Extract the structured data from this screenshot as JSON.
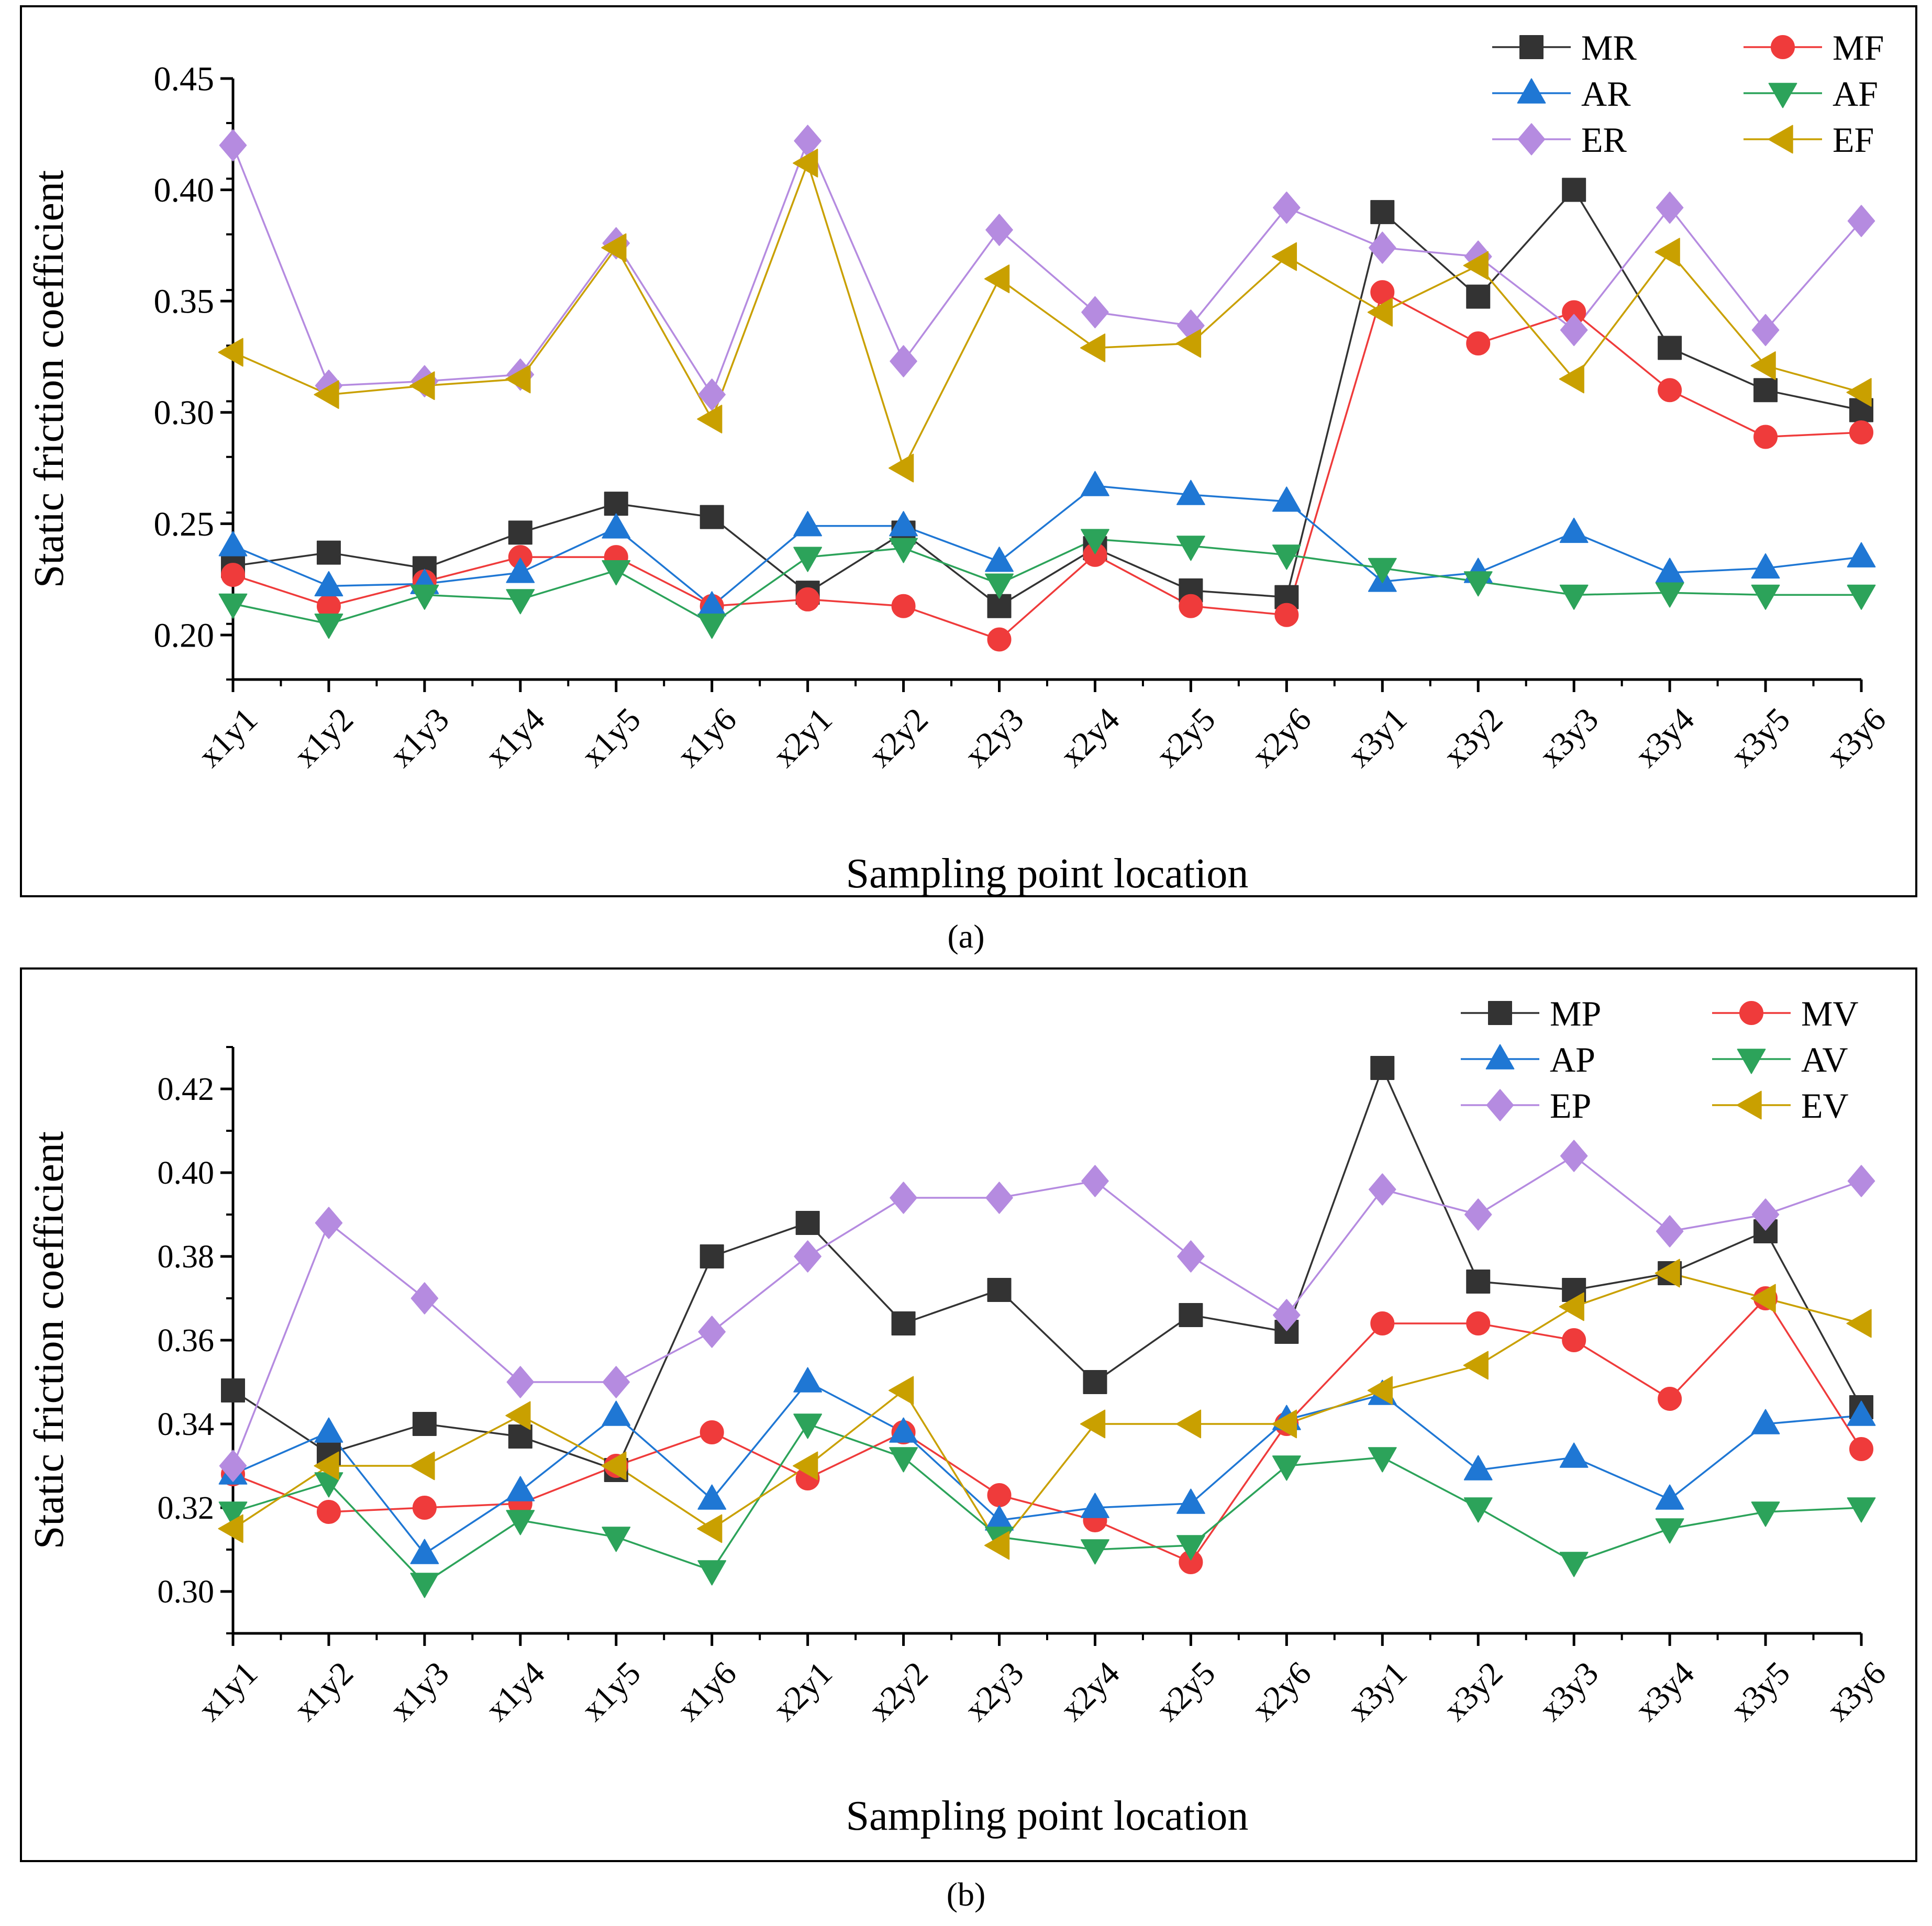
{
  "chart_data": [
    {
      "type": "line",
      "panel_label": "a",
      "caption": "(a)",
      "xlabel": "Sampling point location",
      "ylabel": "Static friction coefficient",
      "ylim": [
        0.18,
        0.45
      ],
      "yticks": [
        "0.20",
        "0.25",
        "0.30",
        "0.35",
        "0.40",
        "0.45"
      ],
      "legend_position": "top-right",
      "categories": [
        "x1y1",
        "x1y2",
        "x1y3",
        "x1y4",
        "x1y5",
        "x1y6",
        "x2y1",
        "x2y2",
        "x2y3",
        "x2y4",
        "x2y5",
        "x2y6",
        "x3y1",
        "x3y2",
        "x3y3",
        "x3y4",
        "x3y5",
        "x3y6"
      ],
      "series": [
        {
          "name": "MR",
          "color": "#333333",
          "marker": "square",
          "values": [
            0.231,
            0.237,
            0.23,
            0.246,
            0.259,
            0.253,
            0.219,
            0.246,
            0.213,
            0.239,
            0.22,
            0.217,
            0.39,
            0.352,
            0.4,
            0.329,
            0.31,
            0.301
          ]
        },
        {
          "name": "MF",
          "color": "#ef3b3b",
          "marker": "circle",
          "values": [
            0.227,
            0.213,
            0.224,
            0.235,
            0.235,
            0.213,
            0.216,
            0.213,
            0.198,
            0.236,
            0.213,
            0.209,
            0.354,
            0.331,
            0.345,
            0.31,
            0.289,
            0.291
          ]
        },
        {
          "name": "AR",
          "color": "#1f77d4",
          "marker": "triangle-up",
          "values": [
            0.24,
            0.222,
            0.223,
            0.228,
            0.248,
            0.213,
            0.249,
            0.249,
            0.233,
            0.267,
            0.263,
            0.26,
            0.224,
            0.228,
            0.246,
            0.228,
            0.23,
            0.235
          ]
        },
        {
          "name": "AF",
          "color": "#2ca35a",
          "marker": "triangle-down",
          "values": [
            0.214,
            0.205,
            0.218,
            0.216,
            0.229,
            0.205,
            0.235,
            0.239,
            0.223,
            0.243,
            0.24,
            0.236,
            0.23,
            0.224,
            0.218,
            0.219,
            0.218,
            0.218
          ]
        },
        {
          "name": "ER",
          "color": "#b58be0",
          "marker": "diamond",
          "values": [
            0.42,
            0.312,
            0.314,
            0.317,
            0.376,
            0.308,
            0.422,
            0.323,
            0.382,
            0.345,
            0.339,
            0.392,
            0.374,
            0.37,
            0.337,
            0.392,
            0.337,
            0.386
          ]
        },
        {
          "name": "EF",
          "color": "#c9a000",
          "marker": "triangle-left",
          "values": [
            0.327,
            0.308,
            0.312,
            0.315,
            0.374,
            0.297,
            0.412,
            0.275,
            0.36,
            0.329,
            0.331,
            0.37,
            0.345,
            0.366,
            0.315,
            0.372,
            0.321,
            0.309
          ]
        }
      ]
    },
    {
      "type": "line",
      "panel_label": "b",
      "caption": "(b)",
      "xlabel": "Sampling point location",
      "ylabel": "Static friction coefficient",
      "ylim": [
        0.29,
        0.43
      ],
      "yticks": [
        "0.30",
        "0.32",
        "0.34",
        "0.36",
        "0.38",
        "0.40",
        "0.42"
      ],
      "legend_position": "top-right",
      "categories": [
        "x1y1",
        "x1y2",
        "x1y3",
        "x1y4",
        "x1y5",
        "x1y6",
        "x2y1",
        "x2y2",
        "x2y3",
        "x2y4",
        "x2y5",
        "x2y6",
        "x3y1",
        "x3y2",
        "x3y3",
        "x3y4",
        "x3y5",
        "x3y6"
      ],
      "series": [
        {
          "name": "MP",
          "color": "#333333",
          "marker": "square",
          "values": [
            0.348,
            0.333,
            0.34,
            0.337,
            0.329,
            0.38,
            0.388,
            0.364,
            0.372,
            0.35,
            0.366,
            0.362,
            0.425,
            0.374,
            0.372,
            0.376,
            0.386,
            0.344
          ]
        },
        {
          "name": "MV",
          "color": "#ef3b3b",
          "marker": "circle",
          "values": [
            0.328,
            0.319,
            0.32,
            0.321,
            0.33,
            0.338,
            0.327,
            0.338,
            0.323,
            0.317,
            0.307,
            0.34,
            0.364,
            0.364,
            0.36,
            0.346,
            0.37,
            0.334
          ]
        },
        {
          "name": "AP",
          "color": "#1f77d4",
          "marker": "triangle-up",
          "values": [
            0.328,
            0.338,
            0.309,
            0.324,
            0.342,
            0.322,
            0.35,
            0.338,
            0.317,
            0.32,
            0.321,
            0.341,
            0.347,
            0.329,
            0.332,
            0.322,
            0.34,
            0.342
          ]
        },
        {
          "name": "AV",
          "color": "#2ca35a",
          "marker": "triangle-down",
          "values": [
            0.319,
            0.326,
            0.302,
            0.317,
            0.313,
            0.305,
            0.34,
            0.332,
            0.313,
            0.31,
            0.311,
            0.33,
            0.332,
            0.32,
            0.307,
            0.315,
            0.319,
            0.32
          ]
        },
        {
          "name": "EP",
          "color": "#b58be0",
          "marker": "diamond",
          "values": [
            0.33,
            0.388,
            0.37,
            0.35,
            0.35,
            0.362,
            0.38,
            0.394,
            0.394,
            0.398,
            0.38,
            0.366,
            0.396,
            0.39,
            0.404,
            0.386,
            0.39,
            0.398
          ]
        },
        {
          "name": "EV",
          "color": "#c9a000",
          "marker": "triangle-left",
          "values": [
            0.315,
            0.33,
            0.33,
            0.342,
            0.33,
            0.315,
            0.33,
            0.348,
            0.311,
            0.34,
            0.34,
            0.34,
            0.348,
            0.354,
            0.368,
            0.376,
            0.37,
            0.364
          ]
        }
      ]
    }
  ]
}
